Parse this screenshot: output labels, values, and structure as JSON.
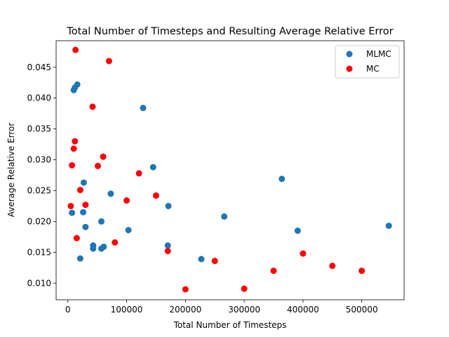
{
  "chart_data": {
    "type": "scatter",
    "title": "Total Number of Timesteps and Resulting Average Relative Error",
    "xlabel": "Total Number of Timesteps",
    "ylabel": "Average Relative Error",
    "xlim": [
      -20000,
      572000
    ],
    "ylim": [
      0.0073,
      0.0493
    ],
    "xticks": [
      0,
      100000,
      200000,
      300000,
      400000,
      500000
    ],
    "xtick_labels": [
      "0",
      "100000",
      "200000",
      "300000",
      "400000",
      "500000"
    ],
    "yticks": [
      0.01,
      0.015,
      0.02,
      0.025,
      0.03,
      0.035,
      0.04,
      0.045
    ],
    "ytick_labels": [
      "0.010",
      "0.015",
      "0.020",
      "0.025",
      "0.030",
      "0.035",
      "0.040",
      "0.045"
    ],
    "grid": false,
    "legend_position": "top-right",
    "series": [
      {
        "name": "MLMC",
        "color": "#1f77b4",
        "points": [
          [
            10000,
            0.0413
          ],
          [
            12000,
            0.0417
          ],
          [
            16000,
            0.0422
          ],
          [
            128000,
            0.0384
          ],
          [
            145000,
            0.0288
          ],
          [
            364000,
            0.0269
          ],
          [
            27000,
            0.0263
          ],
          [
            73000,
            0.0245
          ],
          [
            171000,
            0.0225
          ],
          [
            7000,
            0.0214
          ],
          [
            26000,
            0.0215
          ],
          [
            266000,
            0.0208
          ],
          [
            57000,
            0.02
          ],
          [
            30000,
            0.0191
          ],
          [
            546000,
            0.0193
          ],
          [
            103000,
            0.0186
          ],
          [
            391000,
            0.0185
          ],
          [
            43000,
            0.0161
          ],
          [
            43000,
            0.0156
          ],
          [
            57000,
            0.0156
          ],
          [
            61000,
            0.0159
          ],
          [
            170000,
            0.0161
          ],
          [
            21000,
            0.014
          ],
          [
            227000,
            0.0139
          ]
        ]
      },
      {
        "name": "MC",
        "color": "#ff0000",
        "points": [
          [
            13000,
            0.0478
          ],
          [
            70000,
            0.046
          ],
          [
            42000,
            0.0386
          ],
          [
            12000,
            0.033
          ],
          [
            10000,
            0.0318
          ],
          [
            60000,
            0.0305
          ],
          [
            7000,
            0.0291
          ],
          [
            51000,
            0.029
          ],
          [
            121000,
            0.0278
          ],
          [
            21000,
            0.0251
          ],
          [
            150000,
            0.0242
          ],
          [
            100000,
            0.0234
          ],
          [
            30000,
            0.0227
          ],
          [
            5000,
            0.0225
          ],
          [
            15000,
            0.0173
          ],
          [
            80000,
            0.0166
          ],
          [
            170000,
            0.0152
          ],
          [
            250000,
            0.0136
          ],
          [
            400000,
            0.0148
          ],
          [
            450000,
            0.0128
          ],
          [
            350000,
            0.012
          ],
          [
            500000,
            0.012
          ],
          [
            200000,
            0.009
          ],
          [
            300000,
            0.0091
          ]
        ]
      }
    ]
  }
}
